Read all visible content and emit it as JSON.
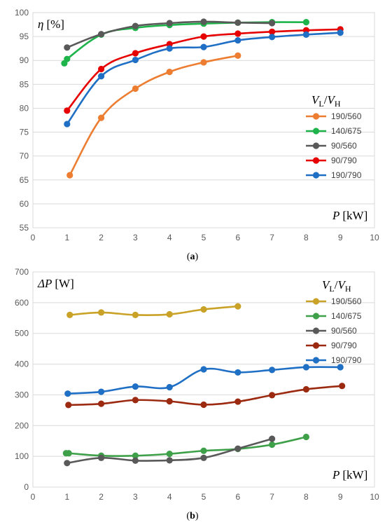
{
  "chart_data": [
    {
      "type": "line",
      "panel_label": "a",
      "ylabel_symbol": "η",
      "ylabel_unit": "[%]",
      "xlabel_symbol": "P",
      "xlabel_unit": "[kW]",
      "legend_title_v1": "V",
      "legend_title_sub1": "L",
      "legend_title_sep": "/",
      "legend_title_v2": "V",
      "legend_title_sub2": "H",
      "xlim": [
        0,
        10
      ],
      "ylim": [
        55,
        100
      ],
      "xticks": [
        0,
        1,
        2,
        3,
        4,
        5,
        6,
        7,
        8,
        9,
        10
      ],
      "yticks": [
        55,
        60,
        65,
        70,
        75,
        80,
        85,
        90,
        95,
        100
      ],
      "grid": "horizontal",
      "legend_position": "right",
      "series": [
        {
          "name": "190/560",
          "color": "#ed7d31",
          "x": [
            1.08,
            2,
            3,
            4,
            5,
            6
          ],
          "y": [
            66.0,
            78.0,
            84.1,
            87.6,
            89.6,
            91.0
          ]
        },
        {
          "name": "140/675",
          "color": "#1fb44b",
          "x": [
            0.92,
            1,
            2,
            3,
            4,
            5,
            6,
            7,
            8
          ],
          "y": [
            89.4,
            90.3,
            95.4,
            96.8,
            97.4,
            97.7,
            97.9,
            98.0,
            98.0
          ]
        },
        {
          "name": "90/560",
          "color": "#595959",
          "x": [
            1,
            2,
            3,
            4,
            5,
            6,
            7
          ],
          "y": [
            92.7,
            95.5,
            97.2,
            97.8,
            98.1,
            97.9,
            97.8
          ]
        },
        {
          "name": "90/790",
          "color": "#e60000",
          "x": [
            1,
            2,
            3,
            4,
            5,
            6,
            7,
            8,
            9
          ],
          "y": [
            79.5,
            88.2,
            91.5,
            93.4,
            95.0,
            95.6,
            96.0,
            96.3,
            96.5
          ]
        },
        {
          "name": "190/790",
          "color": "#1f6fc5",
          "x": [
            1,
            2,
            3,
            4,
            5,
            6,
            7,
            8,
            9
          ],
          "y": [
            76.7,
            86.7,
            90.1,
            92.5,
            92.8,
            94.2,
            94.9,
            95.4,
            95.8
          ]
        }
      ]
    },
    {
      "type": "line",
      "panel_label": "b",
      "ylabel_symbol": "ΔP",
      "ylabel_unit": "[W]",
      "xlabel_symbol": "P",
      "xlabel_unit": "[kW]",
      "legend_title_v1": "V",
      "legend_title_sub1": "L",
      "legend_title_sep": "/",
      "legend_title_v2": "V",
      "legend_title_sub2": "H",
      "xlim": [
        0,
        10
      ],
      "ylim": [
        0,
        700
      ],
      "xticks": [
        0,
        1,
        2,
        3,
        4,
        5,
        6,
        7,
        8,
        9,
        10
      ],
      "yticks": [
        0,
        100,
        200,
        300,
        400,
        500,
        600,
        700
      ],
      "grid": "horizontal",
      "legend_position": "right",
      "series": [
        {
          "name": "190/560",
          "color": "#c9a227",
          "x": [
            1.08,
            2,
            3,
            4,
            5,
            6
          ],
          "y": [
            560,
            568,
            560,
            562,
            578,
            588
          ]
        },
        {
          "name": "140/675",
          "color": "#3fa04a",
          "x": [
            0.97,
            1.05,
            2,
            3,
            4,
            5,
            6,
            7,
            8
          ],
          "y": [
            110,
            110,
            102,
            102,
            108,
            118,
            124,
            138,
            163
          ]
        },
        {
          "name": "90/560",
          "color": "#595959",
          "x": [
            1,
            2,
            3,
            4,
            5,
            6,
            7
          ],
          "y": [
            78,
            95,
            86,
            87,
            95,
            125,
            157
          ]
        },
        {
          "name": "90/790",
          "color": "#9b2a10",
          "x": [
            1.04,
            2,
            3,
            4,
            5,
            6,
            7,
            8,
            9.05
          ],
          "y": [
            267,
            271,
            283,
            279,
            268,
            278,
            299,
            318,
            329
          ]
        },
        {
          "name": "190/790",
          "color": "#1f6fc5",
          "x": [
            1.02,
            2,
            3,
            4,
            5,
            6,
            7,
            8,
            9
          ],
          "y": [
            304,
            310,
            327,
            325,
            383,
            373,
            381,
            390,
            390
          ]
        }
      ]
    }
  ]
}
